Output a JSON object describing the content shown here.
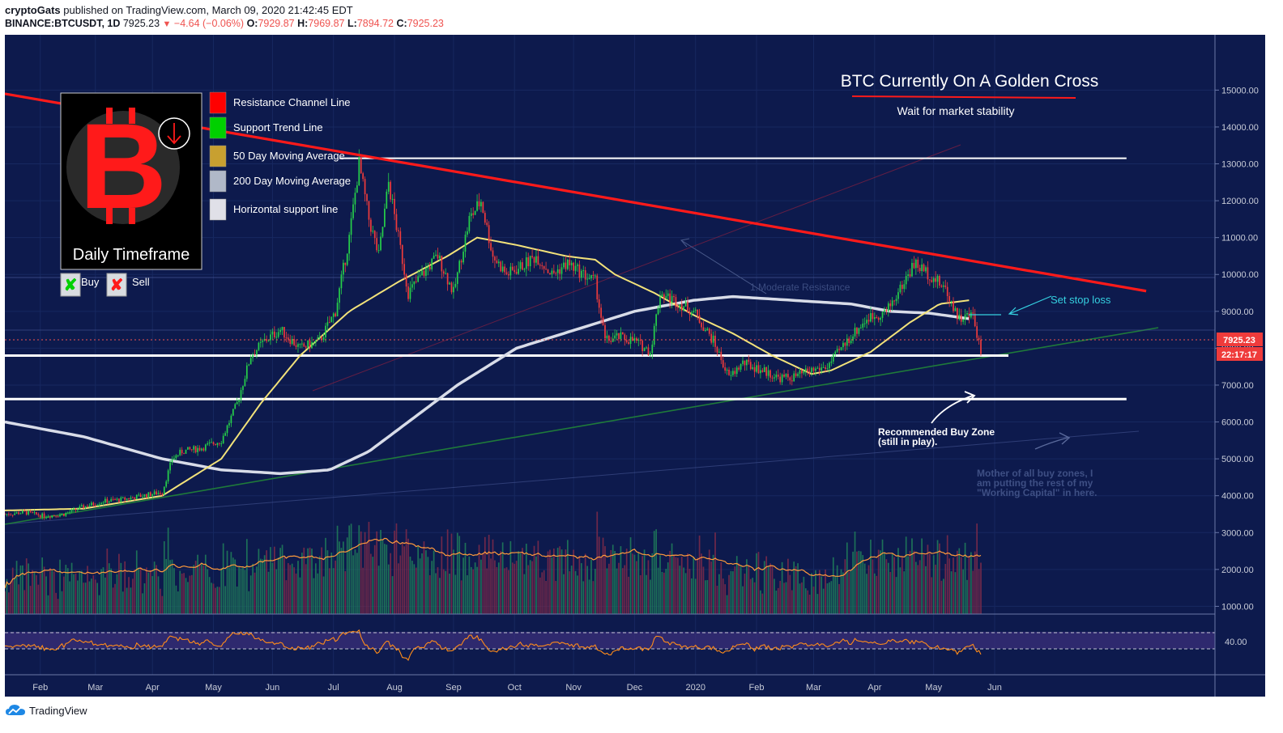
{
  "header": {
    "author": "cryptoGats",
    "published": "published on TradingView.com, March 09, 2020 21:42:45 EDT",
    "symbol": "BINANCE:BTCUSDT, 1D",
    "last": "7925.23",
    "change": "−4.64 (−0.06%)",
    "o_label": "O:",
    "o_value": "7929.87",
    "h_label": "H:",
    "h_value": "7969.87",
    "l_label": "L:",
    "l_value": "7894.72",
    "c_label": "C:",
    "c_value": "7925.23"
  },
  "footer": {
    "brand": "TradingView"
  },
  "legend": {
    "items": [
      {
        "label": "Resistance Channel Line",
        "color": "#ff0000"
      },
      {
        "label": "Support Trend Line",
        "color": "#00d000"
      },
      {
        "label": "50 Day Moving Average",
        "color": "#c8a030"
      },
      {
        "label": "200 Day Moving Average",
        "color": "#b0b8c8"
      },
      {
        "label": "Horizontal support line",
        "color": "#e0e0e8"
      }
    ],
    "logo_caption": "Daily Timeframe",
    "buy": "Buy",
    "sell": "Sell"
  },
  "annotations": {
    "title": "BTC Currently On A Golden Cross",
    "subtitle": "Wait for market stability",
    "stop_loss": "Set stop loss",
    "buy_zone_1": "Recommended Buy Zone",
    "buy_zone_2": "(still in play).",
    "mother_1": "Mother of all buy zones, I",
    "mother_2": "am putting the rest of my",
    "mother_3": "\"Working Capital\" in here.",
    "faint": "1.Moderate Resistance"
  },
  "price_tag": {
    "value": "7925.23",
    "countdown": "22:17:17"
  },
  "rsi_label": "40.00",
  "chart_data": {
    "type": "candlestick",
    "title": "BINANCE:BTCUSDT, 1D",
    "x_tick_labels": [
      "Feb",
      "Mar",
      "Apr",
      "May",
      "Jun",
      "Jul",
      "Aug",
      "Sep",
      "Oct",
      "Nov",
      "Dec",
      "2020",
      "Feb",
      "Mar",
      "Apr",
      "May",
      "Jun"
    ],
    "y_tick_labels": [
      "15000.00",
      "14000.00",
      "13000.00",
      "12000.00",
      "11000.00",
      "10000.00",
      "9000.00",
      "8000.00",
      "7000.00",
      "6000.00",
      "5000.00",
      "4000.00",
      "3000.00",
      "2000.00",
      "1000.00"
    ],
    "y_ticks": [
      15000,
      14000,
      13000,
      12000,
      11000,
      10000,
      9000,
      8000,
      7000,
      6000,
      5000,
      4000,
      3000,
      2000,
      1000
    ],
    "ylim": [
      790,
      16500
    ],
    "price_path": [
      [
        0,
        3500
      ],
      [
        10,
        3550
      ],
      [
        20,
        3450
      ],
      [
        30,
        3500
      ],
      [
        40,
        3700
      ],
      [
        50,
        3850
      ],
      [
        60,
        3900
      ],
      [
        70,
        4000
      ],
      [
        80,
        4100
      ],
      [
        85,
        5000
      ],
      [
        90,
        5200
      ],
      [
        100,
        5300
      ],
      [
        110,
        5500
      ],
      [
        118,
        6500
      ],
      [
        125,
        7800
      ],
      [
        132,
        8200
      ],
      [
        140,
        8500
      ],
      [
        150,
        8000
      ],
      [
        160,
        8200
      ],
      [
        168,
        9000
      ],
      [
        175,
        11000
      ],
      [
        180,
        13000
      ],
      [
        185,
        11500
      ],
      [
        190,
        10500
      ],
      [
        195,
        12500
      ],
      [
        200,
        11000
      ],
      [
        205,
        9500
      ],
      [
        212,
        10000
      ],
      [
        220,
        10500
      ],
      [
        228,
        9500
      ],
      [
        236,
        11500
      ],
      [
        242,
        12000
      ],
      [
        248,
        10500
      ],
      [
        255,
        10000
      ],
      [
        262,
        10200
      ],
      [
        270,
        10500
      ],
      [
        278,
        10000
      ],
      [
        286,
        10300
      ],
      [
        294,
        10000
      ],
      [
        300,
        9800
      ],
      [
        305,
        8200
      ],
      [
        312,
        8300
      ],
      [
        320,
        8200
      ],
      [
        328,
        7900
      ],
      [
        333,
        9500
      ],
      [
        340,
        9300
      ],
      [
        350,
        9000
      ],
      [
        360,
        8200
      ],
      [
        368,
        7200
      ],
      [
        375,
        7600
      ],
      [
        385,
        7400
      ],
      [
        393,
        7200
      ],
      [
        400,
        7200
      ],
      [
        410,
        7400
      ],
      [
        418,
        7500
      ],
      [
        428,
        8200
      ],
      [
        438,
        8800
      ],
      [
        448,
        9000
      ],
      [
        455,
        9600
      ],
      [
        462,
        10300
      ],
      [
        470,
        10000
      ],
      [
        478,
        9600
      ],
      [
        485,
        8800
      ],
      [
        492,
        8900
      ],
      [
        496,
        7925
      ]
    ],
    "ma50_path": [
      [
        0,
        3600
      ],
      [
        40,
        3650
      ],
      [
        80,
        4000
      ],
      [
        110,
        5000
      ],
      [
        130,
        6500
      ],
      [
        150,
        7800
      ],
      [
        175,
        9000
      ],
      [
        200,
        9800
      ],
      [
        225,
        10500
      ],
      [
        240,
        11000
      ],
      [
        260,
        10800
      ],
      [
        285,
        10500
      ],
      [
        300,
        10400
      ],
      [
        310,
        10000
      ],
      [
        330,
        9500
      ],
      [
        350,
        8900
      ],
      [
        370,
        8400
      ],
      [
        390,
        7800
      ],
      [
        410,
        7300
      ],
      [
        420,
        7400
      ],
      [
        440,
        7900
      ],
      [
        460,
        8700
      ],
      [
        475,
        9200
      ],
      [
        490,
        9300
      ]
    ],
    "ma200_path": [
      [
        0,
        6000
      ],
      [
        40,
        5600
      ],
      [
        80,
        5000
      ],
      [
        110,
        4700
      ],
      [
        140,
        4600
      ],
      [
        165,
        4700
      ],
      [
        185,
        5200
      ],
      [
        205,
        6000
      ],
      [
        230,
        7000
      ],
      [
        260,
        8000
      ],
      [
        290,
        8500
      ],
      [
        320,
        9000
      ],
      [
        350,
        9300
      ],
      [
        370,
        9400
      ],
      [
        400,
        9300
      ],
      [
        430,
        9200
      ],
      [
        450,
        9000
      ],
      [
        470,
        8950
      ],
      [
        490,
        8800
      ]
    ],
    "resistance_line": [
      [
        0,
        14900
      ],
      [
        580,
        9550
      ]
    ],
    "horizontal_lines": [
      {
        "from": 170,
        "to": 570,
        "value": 13150
      },
      {
        "from": 0,
        "to": 510,
        "value": 7800
      },
      {
        "from": 0,
        "to": 570,
        "value": 6620
      }
    ],
    "bars": 497
  }
}
